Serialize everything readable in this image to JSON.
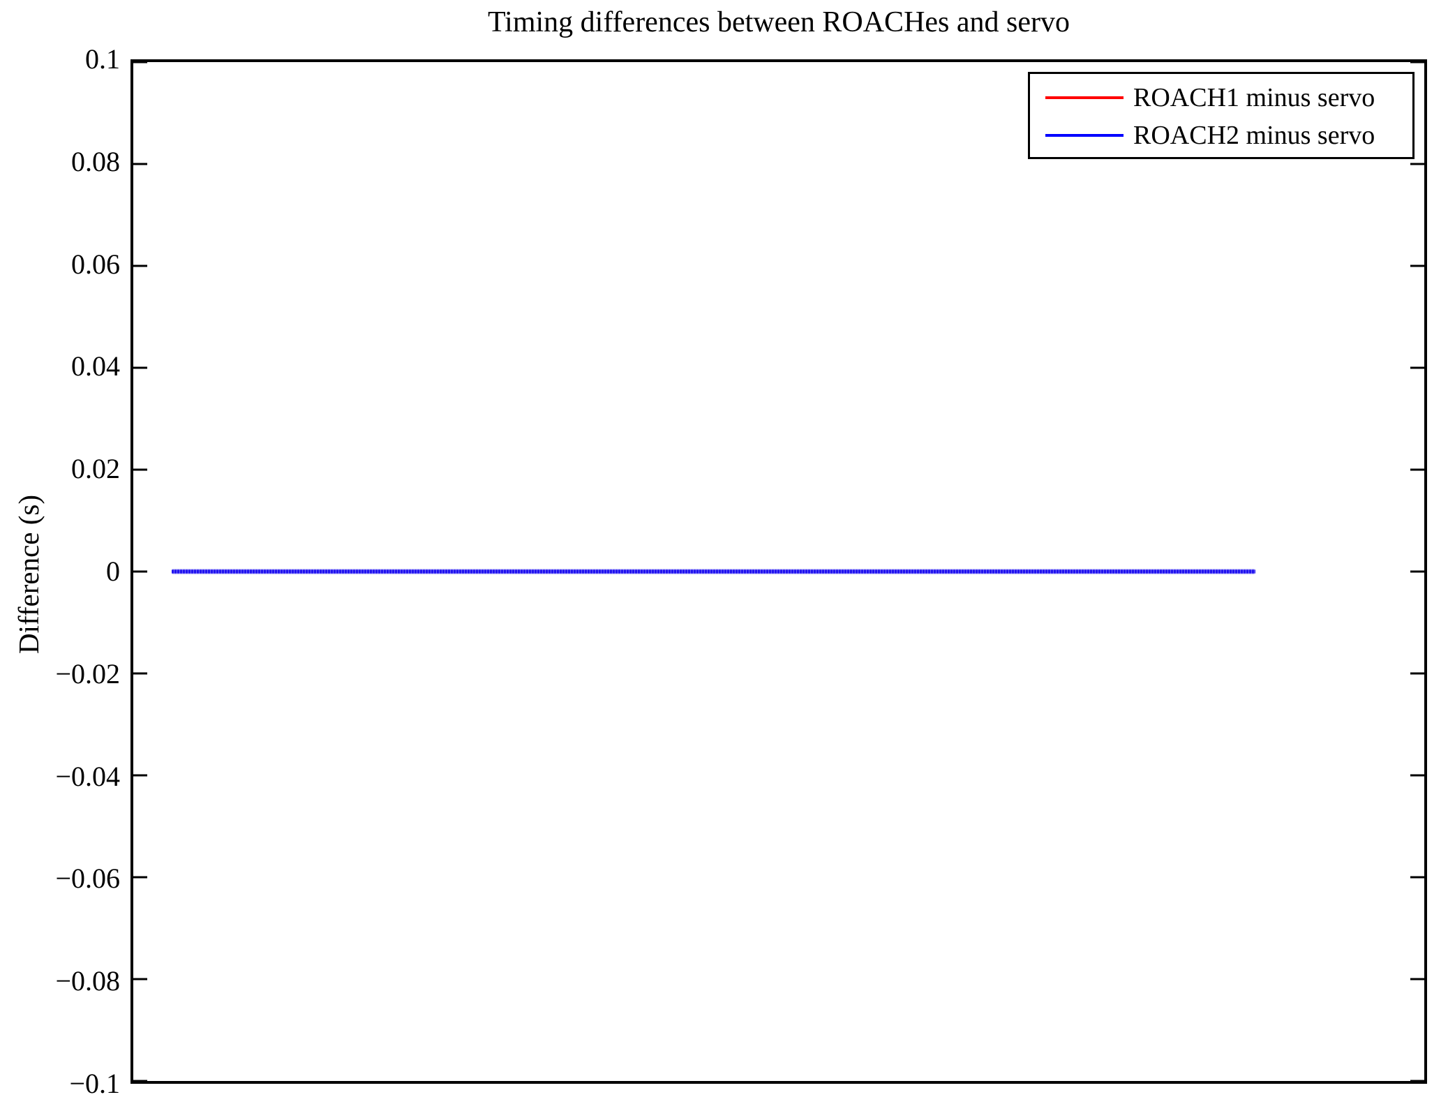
{
  "title": "Timing differences between ROACHes and servo",
  "y_axis": {
    "label": "Difference (s)",
    "tick_labels": [
      "0.1",
      "0.08",
      "0.06",
      "0.04",
      "0.02",
      "0",
      "−0.02",
      "−0.04",
      "−0.06",
      "−0.08",
      "−0.1"
    ]
  },
  "x_axis": {
    "tick_labels": []
  },
  "legend": {
    "position": "upper-right",
    "items": [
      {
        "label": "ROACH1 minus servo",
        "color": "#ff0000"
      },
      {
        "label": "ROACH2 minus servo",
        "color": "#0000ff"
      }
    ]
  },
  "colors": {
    "background": "#ffffff",
    "axis": "#000000",
    "roach1_plotted_line": "#ff0000",
    "roach2_plotted_line": "#2012f0"
  },
  "chart_data": {
    "type": "line",
    "title": "Timing differences between ROACHes and servo",
    "xlabel": "",
    "ylabel": "Difference (s)",
    "ylim": [
      -0.1,
      0.1
    ],
    "y_tick_step": 0.02,
    "x_tick_labels_visible": false,
    "grid": false,
    "legend_position": "upper right",
    "series": [
      {
        "name": "ROACH1 minus servo",
        "color": "#ff0000",
        "constant_value": 0,
        "note": "flat line at y = 0, completely hidden beneath the ROACH2 line"
      },
      {
        "name": "ROACH2 minus servo",
        "color": "#0000ff",
        "constant_value": 0,
        "note": "flat line at y = 0 drawn with dense markers, covers ROACH1 line"
      }
    ],
    "line_x_extent_fraction_of_plot": [
      0.032,
      0.868
    ]
  }
}
